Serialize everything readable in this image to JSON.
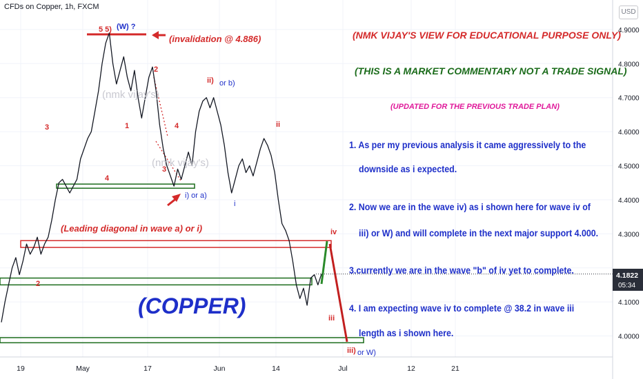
{
  "header": {
    "symbol_title": "CFDs on Copper, 1h, FXCM",
    "currency_button": "USD"
  },
  "commentary": {
    "line1": "(NMK VIJAY'S VIEW FOR EDUCATIONAL PURPOSE ONLY)",
    "line2": "(THIS IS A MARKET COMMENTARY NOT A TRADE SIGNAL)",
    "line3": "(UPDATED FOR THE PREVIOUS TRADE PLAN)",
    "notes": [
      "1. As per my previous analysis it came aggressively to the",
      "downside as i expected.",
      "2. Now we are in the wave iv) as i shown here for wave iv of",
      "iii) or W) and will complete in the next major support 4.000.",
      "3.currently we are in the wave \"b\" of iv yet to complete.",
      "4. I am expecting wave iv to complete @ 38.2 in  wave iii",
      "length as i shown here."
    ],
    "colors": {
      "red": "#d42a2a",
      "green": "#1a6b1a",
      "magenta": "#e0199a",
      "blue": "#1e2fc9"
    }
  },
  "chart_data": {
    "type": "line",
    "title": "CFDs on Copper, 1h, FXCM",
    "symbol_label": "(COPPER)",
    "xlabel": "",
    "ylabel": "",
    "ylim": [
      3.94,
      5.0
    ],
    "x_axis_ticks": [
      "19",
      "May",
      "17",
      "Jun",
      "14",
      "Jul",
      "12",
      "21"
    ],
    "y_axis_ticks": [
      "4.9000",
      "4.8000",
      "4.7000",
      "4.6000",
      "4.5000",
      "4.4000",
      "4.3000",
      "4.1000",
      "4.0000"
    ],
    "last_price": "4.1822",
    "countdown": "05:34",
    "series": [
      {
        "values": [
          4.04,
          4.1,
          4.15,
          4.2,
          4.23,
          4.18,
          4.22,
          4.27,
          4.24,
          4.26,
          4.29,
          4.24,
          4.27,
          4.29,
          4.34,
          4.4,
          4.45,
          4.46,
          4.44,
          4.42,
          4.44,
          4.46,
          4.52,
          4.55,
          4.58,
          4.6,
          4.66,
          4.72,
          4.8,
          4.86,
          4.89,
          4.8,
          4.74,
          4.78,
          4.82,
          4.76,
          4.72,
          4.78,
          4.7,
          4.64,
          4.7,
          4.76,
          4.79,
          4.72,
          4.62,
          4.55,
          4.5,
          4.47,
          4.44,
          4.49,
          4.46,
          4.5,
          4.54,
          4.5,
          4.6,
          4.66,
          4.69,
          4.7,
          4.67,
          4.7,
          4.66,
          4.62,
          4.56,
          4.48,
          4.42,
          4.46,
          4.5,
          4.52,
          4.48,
          4.5,
          4.47,
          4.51,
          4.55,
          4.58,
          4.56,
          4.53,
          4.48,
          4.4,
          4.33,
          4.31,
          4.28,
          4.22,
          4.15,
          4.11,
          4.14,
          4.09,
          4.17,
          4.18,
          4.15,
          4.182
        ]
      }
    ],
    "levels": [
      {
        "label": "invalidation",
        "value": 4.886
      },
      {
        "value": 4.44
      },
      {
        "value": 4.28
      },
      {
        "value": 4.26
      },
      {
        "value": 4.17
      },
      {
        "value": 4.15
      },
      {
        "value": 3.995
      },
      {
        "value": 3.98
      }
    ],
    "annotations": {
      "invalidation": "(invalidation @ 4.886)",
      "leading_diagonal": "(Leading diagonal in wave a) or i)",
      "w_label": "(W) ?",
      "five_five": "5 5)",
      "watermark": "(nmk vijay's)",
      "wave_labels_red": [
        "2",
        "1",
        "3",
        "4",
        "4",
        "3",
        "ii)",
        "ii",
        "2",
        "iv",
        "iii",
        "iii)"
      ],
      "wave_labels_blue": [
        "or b)",
        "i) or a)",
        "i",
        "or W)"
      ]
    }
  }
}
